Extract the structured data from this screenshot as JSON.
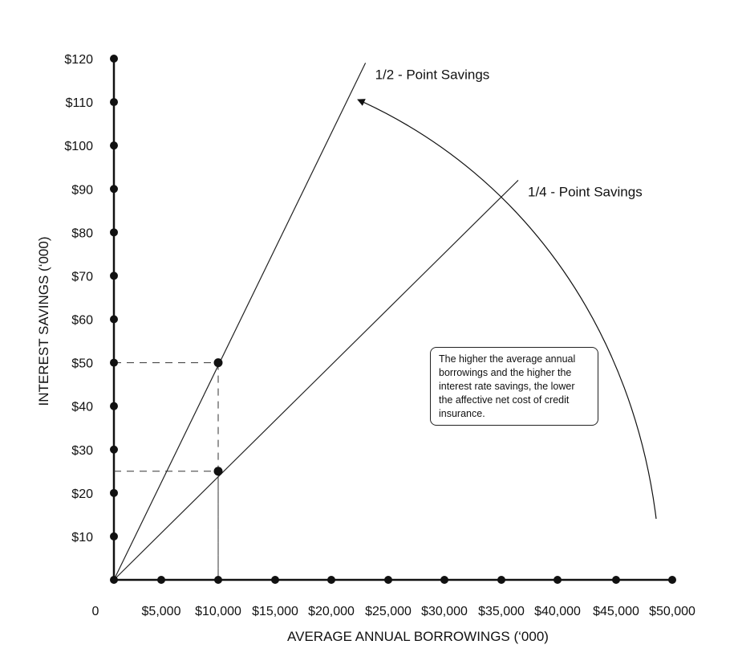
{
  "chart_data": {
    "type": "line",
    "xlabel": "AVERAGE ANNUAL BORROWINGS (‘000)",
    "ylabel": "INTEREST SAVINGS (‘000)",
    "xlim": [
      0,
      50000
    ],
    "ylim": [
      0,
      120
    ],
    "origin_label": "0",
    "x_ticks": [
      5000,
      10000,
      15000,
      20000,
      25000,
      30000,
      35000,
      40000,
      45000,
      50000
    ],
    "x_tick_labels": [
      "$5,000",
      "$10,000",
      "$15,000",
      "$20,000",
      "$25,000",
      "$30,000",
      "$35,000",
      "$40,000",
      "$45,000",
      "$50,000"
    ],
    "y_ticks": [
      10,
      20,
      30,
      40,
      50,
      60,
      70,
      80,
      90,
      100,
      110,
      120
    ],
    "y_tick_labels": [
      "$10",
      "$20",
      "$30",
      "$40",
      "$50",
      "$60",
      "$70",
      "$80",
      "$90",
      "$100",
      "$110",
      "$120"
    ],
    "series": [
      {
        "name": "1/2 - Point Savings",
        "x": [
          0,
          23000
        ],
        "y": [
          0,
          119
        ]
      },
      {
        "name": "1/4 - Point Savings",
        "x": [
          0,
          36500
        ],
        "y": [
          0,
          92
        ]
      }
    ],
    "highlight_points": [
      {
        "x": 10000,
        "y": 50
      },
      {
        "x": 10000,
        "y": 25
      }
    ],
    "grid": false,
    "annotation": "The higher the average annual borrowings and the higher the interest rate savings, the lower the affective net cost of credit insurance."
  }
}
